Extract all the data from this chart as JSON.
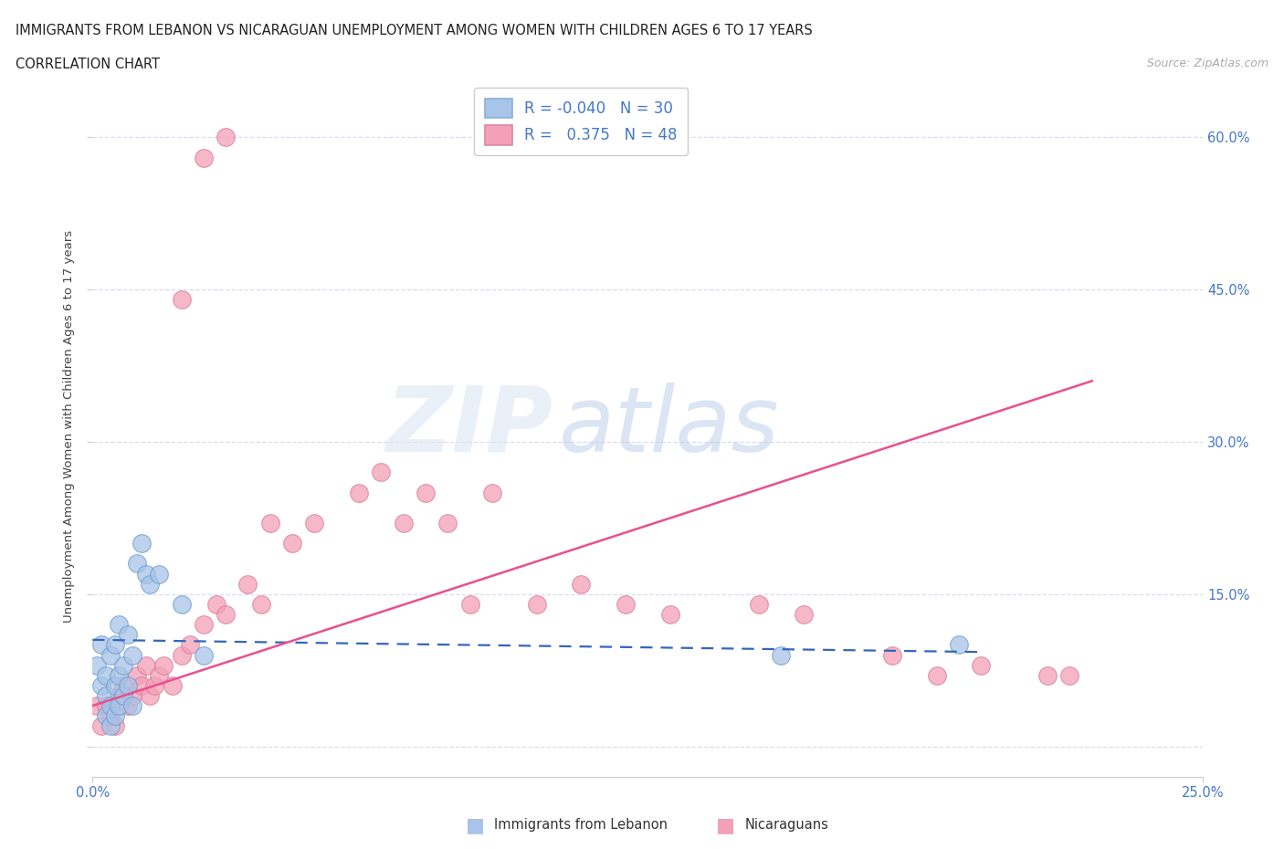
{
  "title_line1": "IMMIGRANTS FROM LEBANON VS NICARAGUAN UNEMPLOYMENT AMONG WOMEN WITH CHILDREN AGES 6 TO 17 YEARS",
  "title_line2": "CORRELATION CHART",
  "source_text": "Source: ZipAtlas.com",
  "ylabel": "Unemployment Among Women with Children Ages 6 to 17 years",
  "xlim": [
    0.0,
    0.25
  ],
  "ylim": [
    -0.03,
    0.66
  ],
  "ytick_values": [
    0.0,
    0.15,
    0.3,
    0.45,
    0.6
  ],
  "xtick_labels": [
    "0.0%",
    "25.0%"
  ],
  "xtick_values": [
    0.0,
    0.25
  ],
  "right_ytick_labels": [
    "60.0%",
    "45.0%",
    "30.0%",
    "15.0%"
  ],
  "right_ytick_values": [
    0.6,
    0.45,
    0.3,
    0.15
  ],
  "blue_color": "#a8c4e8",
  "pink_color": "#f4a0b8",
  "blue_line_color": "#3366bb",
  "pink_line_color": "#e85090",
  "text_color": "#4477cc",
  "grid_color": "#d8ddf0",
  "watermark_zip": "ZIP",
  "watermark_atlas": "atlas",
  "blue_scatter_x": [
    0.001,
    0.002,
    0.002,
    0.003,
    0.003,
    0.003,
    0.004,
    0.004,
    0.004,
    0.005,
    0.005,
    0.005,
    0.006,
    0.006,
    0.006,
    0.007,
    0.007,
    0.008,
    0.008,
    0.009,
    0.009,
    0.01,
    0.011,
    0.012,
    0.013,
    0.015,
    0.02,
    0.025,
    0.155,
    0.195
  ],
  "blue_scatter_y": [
    0.08,
    0.06,
    0.1,
    0.03,
    0.05,
    0.07,
    0.02,
    0.04,
    0.09,
    0.03,
    0.06,
    0.1,
    0.04,
    0.07,
    0.12,
    0.05,
    0.08,
    0.06,
    0.11,
    0.04,
    0.09,
    0.18,
    0.2,
    0.17,
    0.16,
    0.17,
    0.14,
    0.09,
    0.09,
    0.1
  ],
  "pink_scatter_x": [
    0.001,
    0.002,
    0.003,
    0.004,
    0.005,
    0.006,
    0.007,
    0.008,
    0.009,
    0.01,
    0.011,
    0.012,
    0.013,
    0.014,
    0.015,
    0.016,
    0.018,
    0.02,
    0.022,
    0.025,
    0.028,
    0.03,
    0.035,
    0.038,
    0.04,
    0.045,
    0.05,
    0.06,
    0.065,
    0.07,
    0.075,
    0.08,
    0.085,
    0.09,
    0.1,
    0.11,
    0.12,
    0.13,
    0.15,
    0.16,
    0.18,
    0.19,
    0.2,
    0.215,
    0.22,
    0.025,
    0.03,
    0.02
  ],
  "pink_scatter_y": [
    0.04,
    0.02,
    0.04,
    0.03,
    0.02,
    0.05,
    0.06,
    0.04,
    0.05,
    0.07,
    0.06,
    0.08,
    0.05,
    0.06,
    0.07,
    0.08,
    0.06,
    0.09,
    0.1,
    0.12,
    0.14,
    0.13,
    0.16,
    0.14,
    0.22,
    0.2,
    0.22,
    0.25,
    0.27,
    0.22,
    0.25,
    0.22,
    0.14,
    0.25,
    0.14,
    0.16,
    0.14,
    0.13,
    0.14,
    0.13,
    0.09,
    0.07,
    0.08,
    0.07,
    0.07,
    0.58,
    0.6,
    0.44
  ],
  "blue_line_x": [
    0.0,
    0.2
  ],
  "blue_line_y": [
    0.105,
    0.093
  ],
  "pink_line_x": [
    0.0,
    0.225
  ],
  "pink_line_y": [
    0.04,
    0.36
  ]
}
